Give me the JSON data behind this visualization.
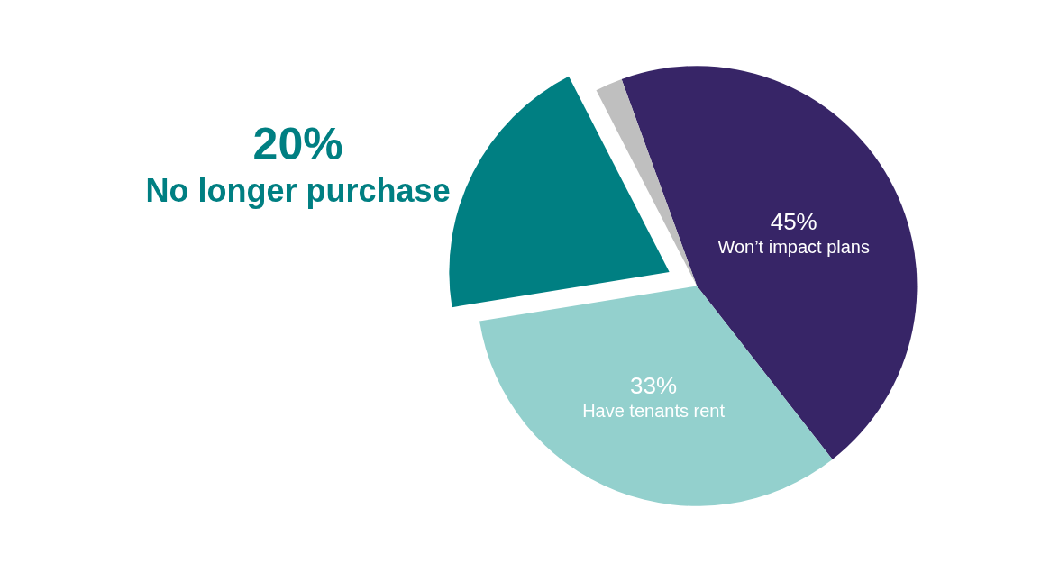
{
  "chart_data": {
    "type": "pie",
    "categories": [
      "Won’t impact plans",
      "Have tenants rent",
      "No longer purchase",
      null
    ],
    "values": [
      45,
      33,
      20,
      2
    ],
    "colors": [
      "#372567",
      "#93d0cd",
      "#007f82",
      "#bfbfbf"
    ],
    "value_labels": [
      "45%",
      "33%",
      "20%",
      null
    ],
    "legend": false
  }
}
